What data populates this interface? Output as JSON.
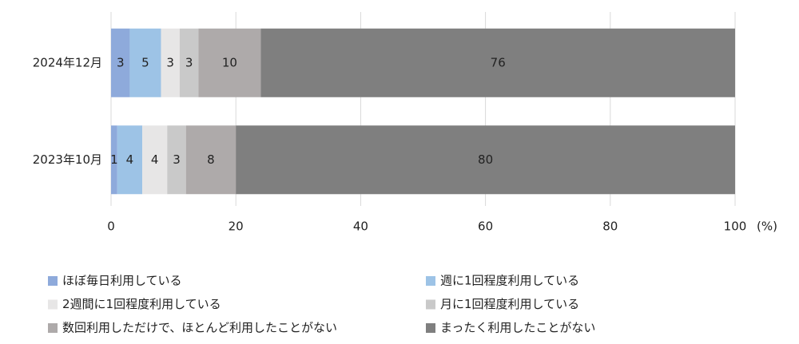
{
  "chart_data": {
    "type": "stacked-bar-horizontal",
    "categories": [
      "2024年12月",
      "2023年10月"
    ],
    "series": [
      {
        "name": "ほぼ毎日利用している",
        "color": "#8eaadb",
        "values": [
          3,
          1
        ]
      },
      {
        "name": "週に1回程度利用している",
        "color": "#9dc3e6",
        "values": [
          5,
          4
        ]
      },
      {
        "name": "2週間に1回程度利用している",
        "color": "#e7e6e6",
        "values": [
          3,
          4
        ]
      },
      {
        "name": "月に1回程度利用している",
        "color": "#c9c9c9",
        "values": [
          3,
          3
        ]
      },
      {
        "name": "数回利用しただけで、ほとんど利用したことがない",
        "color": "#aeaaaa",
        "values": [
          10,
          8
        ]
      },
      {
        "name": "まったく利用したことがない",
        "color": "#7f7f7f",
        "values": [
          76,
          80
        ]
      }
    ],
    "xlim": [
      0,
      100
    ],
    "xticks": [
      0,
      20,
      40,
      60,
      80,
      100
    ],
    "x_axis_label": "(%)",
    "grid": true,
    "data_labels": true,
    "legend": "bottom"
  }
}
